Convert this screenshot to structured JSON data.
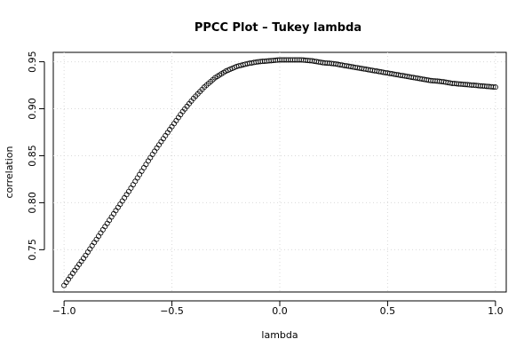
{
  "chart_data": {
    "type": "scatter",
    "title": "PPCC Plot – Tukey lambda",
    "xlabel": "lambda",
    "ylabel": "correlation",
    "xlim": [
      -1.05,
      1.05
    ],
    "ylim": [
      0.705,
      0.96
    ],
    "x_ticks": [
      -1.0,
      -0.5,
      0.0,
      0.5,
      1.0
    ],
    "x_tick_labels": [
      "−1.0",
      "−0.5",
      "0.0",
      "0.5",
      "1.0"
    ],
    "y_ticks": [
      0.75,
      0.8,
      0.85,
      0.9,
      0.95
    ],
    "y_tick_labels": [
      "0.75",
      "0.80",
      "0.85",
      "0.90",
      "0.95"
    ],
    "grid": true,
    "marker": "open-circle",
    "series": [
      {
        "x": [
          -1.0,
          -0.95,
          -0.9,
          -0.85,
          -0.8,
          -0.75,
          -0.7,
          -0.65,
          -0.6,
          -0.55,
          -0.5,
          -0.45,
          -0.4,
          -0.35,
          -0.3,
          -0.25,
          -0.2,
          -0.15,
          -0.1,
          -0.05,
          0.0,
          0.05,
          0.1,
          0.15,
          0.2,
          0.25,
          0.3,
          0.35,
          0.4,
          0.45,
          0.5,
          0.55,
          0.6,
          0.65,
          0.7,
          0.75,
          0.8,
          0.85,
          0.9,
          0.95,
          1.0
        ],
        "y": [
          0.712,
          0.728,
          0.744,
          0.761,
          0.778,
          0.795,
          0.812,
          0.83,
          0.848,
          0.865,
          0.881,
          0.897,
          0.911,
          0.923,
          0.933,
          0.94,
          0.945,
          0.948,
          0.95,
          0.951,
          0.952,
          0.952,
          0.952,
          0.951,
          0.949,
          0.948,
          0.946,
          0.944,
          0.942,
          0.94,
          0.938,
          0.936,
          0.934,
          0.932,
          0.93,
          0.929,
          0.927,
          0.926,
          0.925,
          0.924,
          0.923
        ]
      }
    ]
  }
}
